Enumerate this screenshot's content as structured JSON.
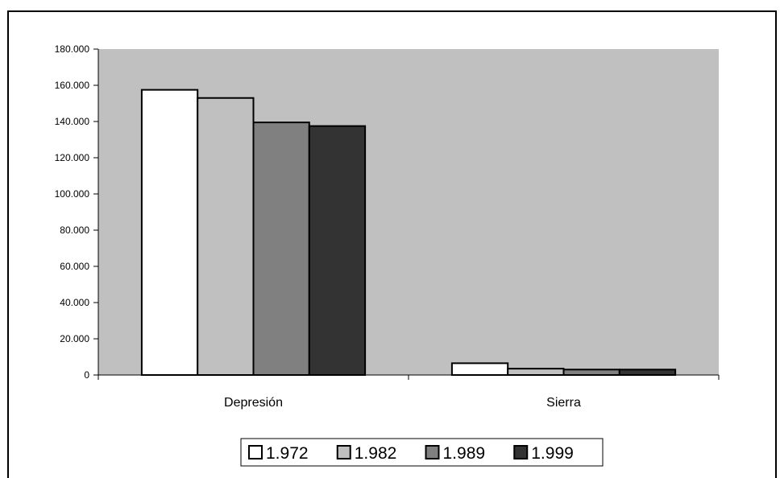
{
  "chart_data": {
    "type": "bar",
    "title": "",
    "xlabel": "",
    "ylabel": "",
    "categories": [
      "Depresión",
      "Sierra"
    ],
    "series": [
      {
        "name": "1.972",
        "color": "#ffffff",
        "values": [
          157500,
          6500
        ]
      },
      {
        "name": "1.982",
        "color": "#c0c0c0",
        "values": [
          153000,
          3500
        ]
      },
      {
        "name": "1.989",
        "color": "#808080",
        "values": [
          139500,
          3000
        ]
      },
      {
        "name": "1.999",
        "color": "#333333",
        "values": [
          137500,
          3000
        ]
      }
    ],
    "ylim": [
      0,
      180000
    ],
    "yticks": [
      0,
      20000,
      40000,
      60000,
      80000,
      100000,
      120000,
      140000,
      160000,
      180000
    ],
    "ytick_labels": [
      "0",
      "20.000",
      "40.000",
      "60.000",
      "80.000",
      "100.000",
      "120.000",
      "140.000",
      "160.000",
      "180.000"
    ],
    "grid": false,
    "legend_position": "bottom",
    "plot_background": "#c0c0c0"
  }
}
